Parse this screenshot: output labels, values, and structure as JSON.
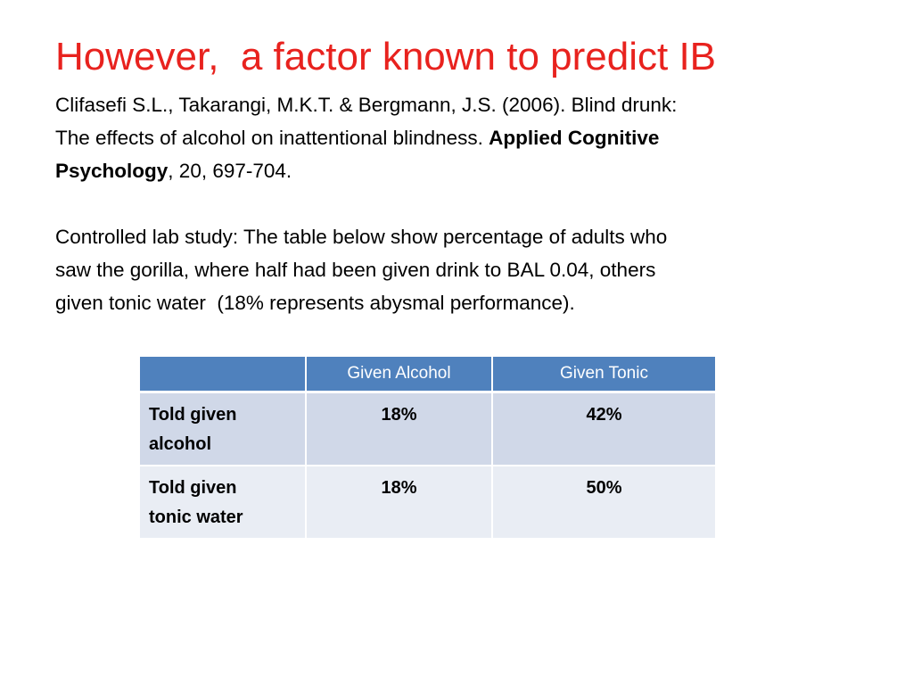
{
  "slide": {
    "title": "However,  a factor known to predict IB",
    "title_color": "#e8221e",
    "citation": {
      "line1": "Clifasefi S.L., Takarangi, M.K.T. & Bergmann, J.S. (2006). Blind drunk:",
      "line2_plain": "The effects of alcohol on inattentional blindness. ",
      "line2_bold": "Applied Cognitive",
      "line3_bold": "Psychology",
      "line3_plain": ", 20, 697-704."
    },
    "description": {
      "line1": "Controlled lab study: The table below show percentage of adults who",
      "line2": "saw the gorilla, where half had been given drink to BAL 0.04, others",
      "line3": "given tonic water  (18% represents abysmal performance)."
    }
  },
  "table": {
    "header_color": "#4f81bd",
    "row_color_odd": "#d0d8e8",
    "row_color_even": "#e9edf4",
    "columns": [
      "",
      "Given Alcohol",
      "Given Tonic"
    ],
    "rows": [
      {
        "label_line1": "Told given",
        "label_line2": "alcohol",
        "values": [
          "18%",
          "42%"
        ]
      },
      {
        "label_line1": "Told given",
        "label_line2": "tonic water",
        "values": [
          "18%",
          "50%"
        ]
      }
    ]
  }
}
